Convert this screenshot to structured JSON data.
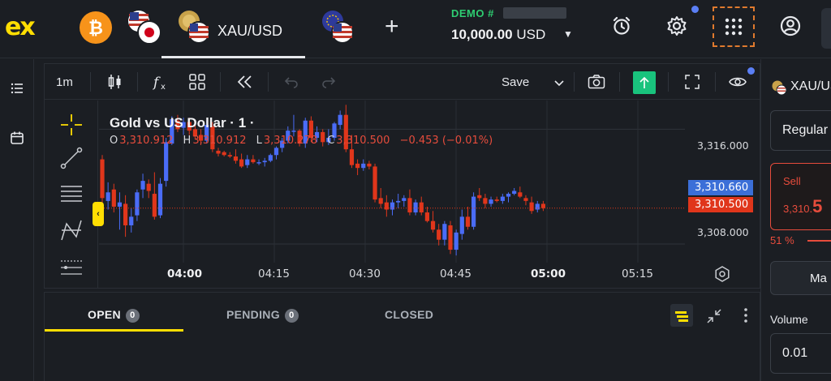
{
  "brand": {
    "logo": "ex",
    "accent": "#ffde02"
  },
  "top_tabs": [
    {
      "icon": "bitcoin-icon"
    },
    {
      "icon": "usd-jpy-flags-icon"
    },
    {
      "label": "XAU/USD",
      "active": true
    },
    {
      "icon": "eur-usd-flags-icon"
    }
  ],
  "account": {
    "type": "DEMO #",
    "balance": "10,000.00",
    "currency": "USD"
  },
  "chart": {
    "timeframe": "1m",
    "save_label": "Save",
    "title": "Gold vs US Dollar · 1 ·",
    "ohlc": {
      "o_key": "O",
      "o": "3,310.912",
      "h_key": "H",
      "h": "3,310.912",
      "l_key": "L",
      "l": "3,310.278",
      "c_key": "C",
      "c": "3,310.500",
      "change": "−0.453 (−0.01%)"
    },
    "price_axis": {
      "upper": "3,316.000",
      "lower": "3,308.000"
    },
    "buy_price_tag": "3,310.660",
    "sell_price_tag": "3,310.500",
    "time_axis": [
      "04:00",
      "04:15",
      "04:30",
      "04:45",
      "05:00",
      "05:15"
    ],
    "colors": {
      "up": "#4a6cf7",
      "down": "#e0361b",
      "buy_tag": "#3b6fd8",
      "sell_tag": "#e0361b"
    }
  },
  "chart_data": {
    "type": "candlestick",
    "title": "Gold vs US Dollar · 1 ·",
    "x_ticks": [
      "04:00",
      "04:15",
      "04:30",
      "04:45",
      "05:00",
      "05:15"
    ],
    "y_ticks": [
      3316.0,
      3308.0
    ],
    "ylim": [
      3306.7,
      3318.0
    ],
    "candles": [
      [
        3313.9,
        3314.2,
        3310.6,
        3311.2
      ],
      [
        3311.0,
        3312.3,
        3310.4,
        3311.6
      ],
      [
        3311.8,
        3312.2,
        3310.2,
        3310.6
      ],
      [
        3310.6,
        3311.6,
        3309.0,
        3310.9
      ],
      [
        3310.8,
        3311.4,
        3308.5,
        3309.3
      ],
      [
        3309.3,
        3310.5,
        3308.8,
        3309.9
      ],
      [
        3310.0,
        3311.8,
        3309.6,
        3311.6
      ],
      [
        3311.8,
        3312.9,
        3311.2,
        3312.4
      ],
      [
        3312.2,
        3312.5,
        3311.2,
        3311.7
      ],
      [
        3311.5,
        3313.0,
        3309.7,
        3309.9
      ],
      [
        3310.0,
        3312.6,
        3309.8,
        3312.2
      ],
      [
        3312.4,
        3315.4,
        3312.0,
        3315.1
      ],
      [
        3315.0,
        3316.9,
        3314.9,
        3316.7
      ],
      [
        3316.6,
        3317.0,
        3315.8,
        3316.0
      ],
      [
        3316.1,
        3316.8,
        3315.6,
        3316.5
      ],
      [
        3316.5,
        3316.8,
        3315.6,
        3315.9
      ],
      [
        3316.0,
        3316.5,
        3315.3,
        3315.5
      ],
      [
        3315.6,
        3316.0,
        3314.9,
        3315.2
      ],
      [
        3315.2,
        3316.6,
        3315.0,
        3316.3
      ],
      [
        3316.2,
        3316.5,
        3314.4,
        3314.6
      ],
      [
        3314.5,
        3314.7,
        3314.1,
        3314.3
      ],
      [
        3314.4,
        3314.5,
        3314.1,
        3314.2
      ],
      [
        3314.2,
        3314.4,
        3314.0,
        3314.1
      ],
      [
        3314.1,
        3314.6,
        3313.6,
        3313.8
      ],
      [
        3313.9,
        3314.3,
        3313.3,
        3313.4
      ],
      [
        3313.5,
        3314.2,
        3313.3,
        3313.9
      ],
      [
        3313.9,
        3314.2,
        3313.6,
        3313.7
      ],
      [
        3313.7,
        3313.9,
        3313.5,
        3313.7
      ],
      [
        3313.7,
        3314.0,
        3313.4,
        3313.8
      ],
      [
        3313.8,
        3314.3,
        3313.7,
        3314.2
      ],
      [
        3314.2,
        3314.8,
        3313.9,
        3314.7
      ],
      [
        3314.7,
        3315.4,
        3314.4,
        3315.2
      ],
      [
        3315.2,
        3316.2,
        3315.0,
        3315.9
      ],
      [
        3315.9,
        3317.0,
        3315.5,
        3315.9
      ],
      [
        3315.9,
        3316.0,
        3314.8,
        3315.0
      ],
      [
        3315.0,
        3316.8,
        3314.7,
        3316.6
      ],
      [
        3316.6,
        3316.9,
        3315.1,
        3315.4
      ],
      [
        3315.4,
        3316.2,
        3315.1,
        3315.8
      ],
      [
        3315.8,
        3316.0,
        3314.8,
        3315.1
      ],
      [
        3315.1,
        3316.0,
        3314.9,
        3315.4
      ],
      [
        3315.4,
        3316.5,
        3315.2,
        3316.4
      ],
      [
        3316.3,
        3317.3,
        3316.0,
        3317.0
      ],
      [
        3317.0,
        3317.7,
        3314.4,
        3314.6
      ],
      [
        3314.6,
        3315.6,
        3313.3,
        3313.5
      ],
      [
        3313.6,
        3313.9,
        3312.8,
        3313.3
      ],
      [
        3313.3,
        3313.9,
        3313.1,
        3313.6
      ],
      [
        3313.6,
        3313.8,
        3313.2,
        3313.4
      ],
      [
        3313.4,
        3313.6,
        3310.9,
        3311.1
      ],
      [
        3311.2,
        3311.9,
        3310.5,
        3310.8
      ],
      [
        3310.9,
        3311.4,
        3309.9,
        3310.4
      ],
      [
        3310.4,
        3311.1,
        3310.0,
        3310.9
      ],
      [
        3310.9,
        3311.5,
        3310.5,
        3311.0
      ],
      [
        3311.0,
        3311.4,
        3310.6,
        3311.2
      ],
      [
        3311.2,
        3311.8,
        3310.0,
        3310.2
      ],
      [
        3310.2,
        3311.1,
        3310.0,
        3310.9
      ],
      [
        3310.9,
        3311.3,
        3310.0,
        3310.2
      ],
      [
        3310.2,
        3310.6,
        3309.5,
        3309.6
      ],
      [
        3309.6,
        3310.3,
        3308.8,
        3309.0
      ],
      [
        3309.0,
        3309.4,
        3307.9,
        3308.3
      ],
      [
        3308.3,
        3309.6,
        3307.9,
        3309.4
      ],
      [
        3309.3,
        3309.6,
        3307.3,
        3307.6
      ],
      [
        3307.6,
        3309.0,
        3307.2,
        3308.8
      ],
      [
        3308.7,
        3310.4,
        3308.3,
        3309.9
      ],
      [
        3309.9,
        3310.6,
        3309.0,
        3309.2
      ],
      [
        3309.2,
        3311.6,
        3309.0,
        3311.3
      ],
      [
        3311.4,
        3311.9,
        3311.0,
        3311.2
      ],
      [
        3311.2,
        3311.5,
        3310.5,
        3310.8
      ],
      [
        3310.8,
        3311.3,
        3310.6,
        3311.1
      ],
      [
        3311.1,
        3311.3,
        3310.9,
        3311.0
      ],
      [
        3311.0,
        3311.5,
        3310.8,
        3311.3
      ],
      [
        3311.3,
        3311.6,
        3310.9,
        3311.5
      ],
      [
        3311.5,
        3311.9,
        3311.4,
        3311.7
      ],
      [
        3311.6,
        3312.0,
        3311.2,
        3311.3
      ],
      [
        3311.2,
        3311.4,
        3310.7,
        3311.0
      ],
      [
        3310.9,
        3311.3,
        3310.1,
        3310.3
      ],
      [
        3310.4,
        3311.0,
        3310.2,
        3310.8
      ],
      [
        3310.8,
        3311.0,
        3310.3,
        3310.5
      ]
    ]
  },
  "orders": {
    "tabs": [
      {
        "label": "OPEN",
        "count": "0",
        "active": true
      },
      {
        "label": "PENDING",
        "count": "0"
      },
      {
        "label": "CLOSED"
      }
    ]
  },
  "trade_panel": {
    "symbol": "XAU/USD",
    "order_type": "Regular",
    "sell_label": "Sell",
    "sell_price_prefix": "3,310.",
    "sell_price_big": "5",
    "sell_pct": "51 %",
    "market_label": "Ma",
    "volume_label": "Volume",
    "volume_value": "0.01"
  }
}
